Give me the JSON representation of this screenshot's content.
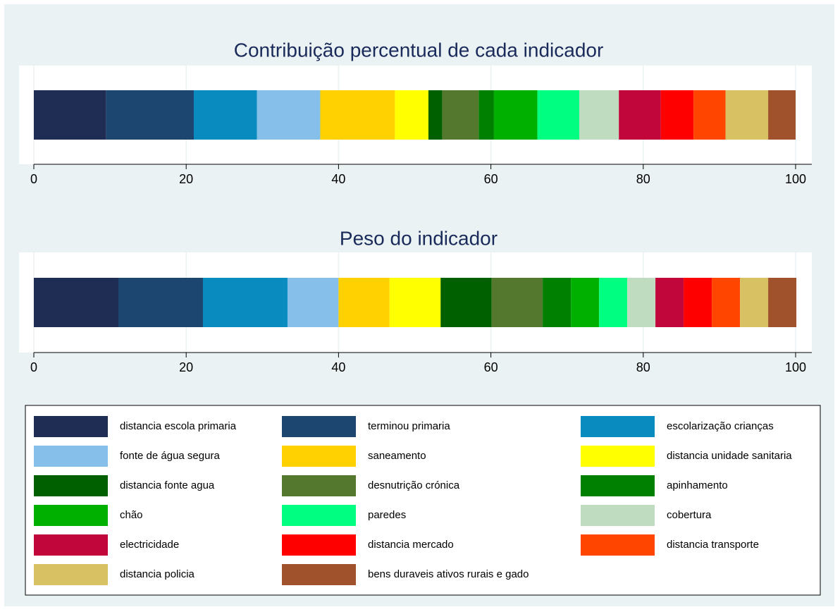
{
  "chart_data": {
    "type": "bar",
    "orientation": "horizontal",
    "stacked": true,
    "categories": [
      "Contribuição percentual de cada indicador",
      "Peso do indicador"
    ],
    "xlim": [
      0,
      100
    ],
    "xticks": [
      0,
      20,
      40,
      60,
      80,
      100
    ],
    "grid": true,
    "series": [
      {
        "name": "distancia escola primaria",
        "color": "#1f2d55",
        "values": [
          9.5,
          11.1
        ]
      },
      {
        "name": "terminou primaria",
        "color": "#1c4670",
        "values": [
          11.5,
          11.1
        ]
      },
      {
        "name": "escolarização crianças",
        "color": "#0a8bbf",
        "values": [
          8.3,
          11.1
        ]
      },
      {
        "name": "fonte de água segura",
        "color": "#86c0ea",
        "values": [
          8.3,
          6.7
        ]
      },
      {
        "name": "saneamento",
        "color": "#ffd100",
        "values": [
          9.8,
          6.7
        ]
      },
      {
        "name": "distancia unidade sanitaria",
        "color": "#ffff00",
        "values": [
          4.4,
          6.7
        ]
      },
      {
        "name": "distancia fonte agua",
        "color": "#006000",
        "values": [
          1.8,
          6.7
        ]
      },
      {
        "name": "desnutrição crónica",
        "color": "#53782e",
        "values": [
          4.8,
          6.7
        ]
      },
      {
        "name": "apinhamento",
        "color": "#008000",
        "values": [
          2.0,
          3.7
        ]
      },
      {
        "name": "chão",
        "color": "#00b000",
        "values": [
          5.7,
          3.7
        ]
      },
      {
        "name": "paredes",
        "color": "#00ff80",
        "values": [
          5.5,
          3.7
        ]
      },
      {
        "name": "cobertura",
        "color": "#c0dcc0",
        "values": [
          5.2,
          3.7
        ]
      },
      {
        "name": "electricidade",
        "color": "#c0063a",
        "values": [
          5.5,
          3.7
        ]
      },
      {
        "name": "distancia mercado",
        "color": "#ff0000",
        "values": [
          4.3,
          3.7
        ]
      },
      {
        "name": "distancia transporte",
        "color": "#ff4500",
        "values": [
          4.2,
          3.7
        ]
      },
      {
        "name": "distancia policia",
        "color": "#d8c163",
        "values": [
          5.6,
          3.7
        ]
      },
      {
        "name": "bens duraveis ativos rurais e gado",
        "color": "#a0522d",
        "values": [
          3.6,
          3.7
        ]
      }
    ],
    "legend_columns": 3
  }
}
